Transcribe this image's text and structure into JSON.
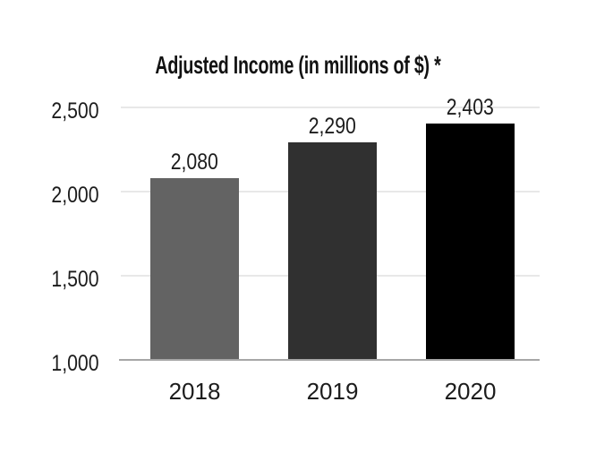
{
  "chart_data": {
    "type": "bar",
    "title": "Adjusted Income (in millions of $) *",
    "categories": [
      "2018",
      "2019",
      "2020"
    ],
    "values": [
      2080,
      2290,
      2403
    ],
    "data_labels": [
      "2,080",
      "2,290",
      "2,403"
    ],
    "bar_colors": [
      "#636363",
      "#303030",
      "#000000"
    ],
    "y_ticks": [
      {
        "label": "2,500",
        "value": 2500
      },
      {
        "label": "2,000",
        "value": 2000
      },
      {
        "label": "1,500",
        "value": 1500
      },
      {
        "label": "1,000",
        "value": 1000
      }
    ],
    "ylim": [
      1000,
      2500
    ],
    "xlabel": "",
    "ylabel": "",
    "grid": true,
    "legend": false,
    "colors": {
      "gridline": "#e8e8e8",
      "axis_line": "#a6a6a6",
      "text": "#1c1c1c",
      "background": "#ffffff"
    }
  }
}
